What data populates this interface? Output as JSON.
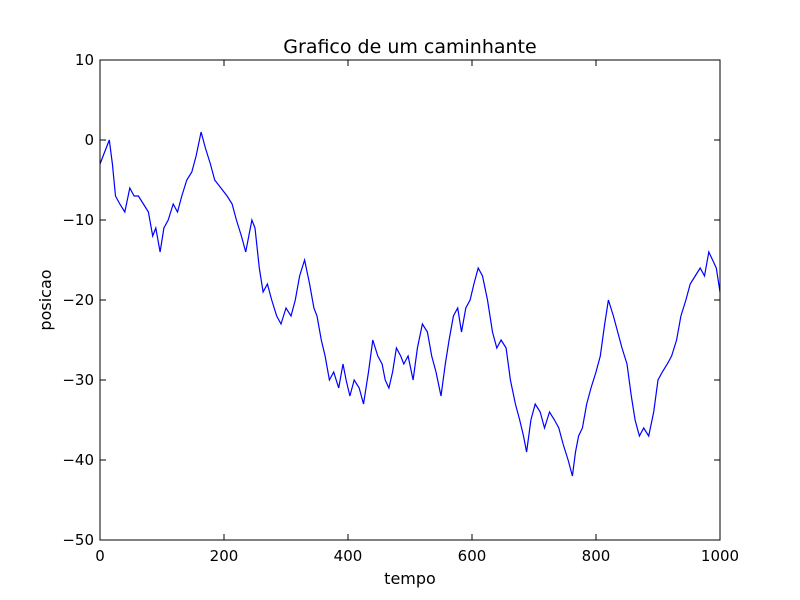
{
  "chart_data": {
    "type": "line",
    "title": "Grafico de um caminhante",
    "xlabel": "tempo",
    "ylabel": "posicao",
    "xlim": [
      0,
      1000
    ],
    "ylim": [
      -50,
      10
    ],
    "xticks": [
      0,
      200,
      400,
      600,
      800,
      1000
    ],
    "xtick_labels": [
      "0",
      "200",
      "400",
      "600",
      "800",
      "1000"
    ],
    "yticks": [
      10,
      0,
      -10,
      -20,
      -30,
      -40,
      -50
    ],
    "ytick_labels": [
      "10",
      "0",
      "−10",
      "−20",
      "−30",
      "−40",
      "−50"
    ],
    "grid": false,
    "line_color": "#0000ff",
    "series": [
      {
        "x": [
          0,
          5,
          15,
          20,
          25,
          32,
          40,
          48,
          55,
          62,
          70,
          78,
          85,
          90,
          97,
          103,
          110,
          118,
          125,
          132,
          140,
          148,
          155,
          163,
          170,
          178,
          185,
          195,
          205,
          213,
          220,
          228,
          235,
          240,
          245,
          250,
          257,
          263,
          270,
          277,
          285,
          292,
          300,
          308,
          315,
          322,
          330,
          338,
          345,
          350,
          357,
          363,
          370,
          377,
          385,
          392,
          397,
          403,
          410,
          418,
          425,
          433,
          440,
          448,
          455,
          460,
          466,
          472,
          478,
          485,
          490,
          497,
          505,
          512,
          520,
          528,
          535,
          542,
          550,
          557,
          563,
          570,
          577,
          583,
          590,
          597,
          603,
          610,
          617,
          625,
          633,
          640,
          647,
          655,
          662,
          670,
          677,
          683,
          688,
          695,
          702,
          710,
          717,
          725,
          733,
          740,
          747,
          755,
          762,
          767,
          772,
          778,
          785,
          792,
          800,
          807,
          814,
          820,
          828,
          835,
          842,
          850,
          857,
          863,
          870,
          877,
          885,
          893,
          900,
          907,
          915,
          922,
          930,
          937,
          945,
          952,
          960,
          968,
          975,
          982,
          988,
          994,
          1000
        ],
        "y": [
          -3,
          -2,
          0,
          -3,
          -7,
          -8,
          -9,
          -6,
          -7,
          -7,
          -8,
          -9,
          -12,
          -11,
          -14,
          -11,
          -10,
          -8,
          -9,
          -7,
          -5,
          -4,
          -2,
          1,
          -1,
          -3,
          -5,
          -6,
          -7,
          -8,
          -10,
          -12,
          -14,
          -12,
          -10,
          -11,
          -16,
          -19,
          -18,
          -20,
          -22,
          -23,
          -21,
          -22,
          -20,
          -17,
          -15,
          -18,
          -21,
          -22,
          -25,
          -27,
          -30,
          -29,
          -31,
          -28,
          -30,
          -32,
          -30,
          -31,
          -33,
          -29,
          -25,
          -27,
          -28,
          -30,
          -31,
          -29,
          -26,
          -27,
          -28,
          -27,
          -30,
          -26,
          -23,
          -24,
          -27,
          -29,
          -32,
          -28,
          -25,
          -22,
          -21,
          -24,
          -21,
          -20,
          -18,
          -16,
          -17,
          -20,
          -24,
          -26,
          -25,
          -26,
          -30,
          -33,
          -35,
          -37,
          -39,
          -35,
          -33,
          -34,
          -36,
          -34,
          -35,
          -36,
          -38,
          -40,
          -42,
          -39,
          -37,
          -36,
          -33,
          -31,
          -29,
          -27,
          -23,
          -20,
          -22,
          -24,
          -26,
          -28,
          -32,
          -35,
          -37,
          -36,
          -37,
          -34,
          -30,
          -29,
          -28,
          -27,
          -25,
          -22,
          -20,
          -18,
          -17,
          -16,
          -17,
          -14,
          -15,
          -16,
          -19
        ]
      }
    ]
  }
}
